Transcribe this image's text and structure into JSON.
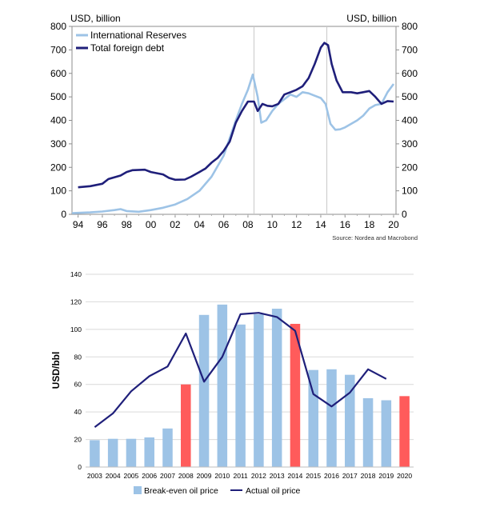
{
  "chart_data": [
    {
      "type": "line",
      "left_axis_title": "USD, billion",
      "right_axis_title": "USD, billion",
      "ylim": [
        0,
        800
      ],
      "y_ticks": [
        "0",
        "100",
        "200",
        "300",
        "400",
        "500",
        "600",
        "700",
        "800"
      ],
      "x_ticks": [
        "94",
        "96",
        "98",
        "00",
        "02",
        "04",
        "06",
        "08",
        "10",
        "12",
        "14",
        "16",
        "18",
        "20"
      ],
      "x_range": [
        1993.5,
        2020.2
      ],
      "vlines": [
        2008.5,
        2014.5
      ],
      "source": "Source: Nordea and Macrobond",
      "colors": {
        "reserves": "#9DC3E6",
        "debt": "#1F1F7A"
      },
      "series": [
        {
          "name": "International Reserves",
          "points": [
            [
              1993.5,
              5
            ],
            [
              1994,
              6
            ],
            [
              1995,
              8
            ],
            [
              1996,
              12
            ],
            [
              1997,
              18
            ],
            [
              1997.5,
              22
            ],
            [
              1998,
              14
            ],
            [
              1999,
              11
            ],
            [
              2000,
              18
            ],
            [
              2001,
              28
            ],
            [
              2002,
              42
            ],
            [
              2003,
              65
            ],
            [
              2004,
              100
            ],
            [
              2005,
              160
            ],
            [
              2006,
              250
            ],
            [
              2007,
              400
            ],
            [
              2007.5,
              470
            ],
            [
              2008,
              530
            ],
            [
              2008.4,
              595
            ],
            [
              2008.8,
              500
            ],
            [
              2009.1,
              390
            ],
            [
              2009.5,
              400
            ],
            [
              2010,
              440
            ],
            [
              2010.5,
              470
            ],
            [
              2011,
              490
            ],
            [
              2011.5,
              510
            ],
            [
              2012,
              500
            ],
            [
              2012.5,
              520
            ],
            [
              2013,
              515
            ],
            [
              2013.5,
              505
            ],
            [
              2014,
              495
            ],
            [
              2014.4,
              470
            ],
            [
              2014.8,
              385
            ],
            [
              2015.2,
              360
            ],
            [
              2015.6,
              362
            ],
            [
              2016,
              370
            ],
            [
              2016.5,
              385
            ],
            [
              2017,
              400
            ],
            [
              2017.5,
              420
            ],
            [
              2018,
              450
            ],
            [
              2018.5,
              465
            ],
            [
              2019,
              470
            ],
            [
              2019.5,
              520
            ],
            [
              2020,
              555
            ]
          ]
        },
        {
          "name": "Total foreign debt",
          "points": [
            [
              1994,
              115
            ],
            [
              1995,
              120
            ],
            [
              1996,
              130
            ],
            [
              1996.5,
              150
            ],
            [
              1997.5,
              165
            ],
            [
              1998,
              180
            ],
            [
              1998.5,
              188
            ],
            [
              1999.5,
              190
            ],
            [
              2000,
              180
            ],
            [
              2001,
              170
            ],
            [
              2001.5,
              155
            ],
            [
              2002,
              147
            ],
            [
              2002.8,
              148
            ],
            [
              2003.3,
              160
            ],
            [
              2004,
              180
            ],
            [
              2004.5,
              195
            ],
            [
              2005,
              220
            ],
            [
              2005.5,
              240
            ],
            [
              2006,
              270
            ],
            [
              2006.5,
              310
            ],
            [
              2007,
              390
            ],
            [
              2007.5,
              440
            ],
            [
              2008,
              480
            ],
            [
              2008.5,
              480
            ],
            [
              2008.8,
              440
            ],
            [
              2009.2,
              470
            ],
            [
              2009.6,
              462
            ],
            [
              2010,
              460
            ],
            [
              2010.5,
              470
            ],
            [
              2011,
              510
            ],
            [
              2011.5,
              520
            ],
            [
              2012,
              530
            ],
            [
              2012.5,
              545
            ],
            [
              2013,
              580
            ],
            [
              2013.5,
              640
            ],
            [
              2014,
              710
            ],
            [
              2014.3,
              730
            ],
            [
              2014.6,
              720
            ],
            [
              2014.9,
              640
            ],
            [
              2015.3,
              570
            ],
            [
              2015.8,
              520
            ],
            [
              2016.5,
              520
            ],
            [
              2017,
              515
            ],
            [
              2017.5,
              520
            ],
            [
              2018,
              525
            ],
            [
              2018.5,
              500
            ],
            [
              2019,
              470
            ],
            [
              2019.5,
              482
            ],
            [
              2020,
              480
            ]
          ]
        }
      ]
    },
    {
      "type": "bar",
      "ylabel": "USD/bbl",
      "ylim": [
        0,
        140
      ],
      "y_ticks": [
        "0",
        "20",
        "40",
        "60",
        "80",
        "100",
        "120",
        "140"
      ],
      "categories": [
        "2003",
        "2004",
        "2005",
        "2006",
        "2007",
        "2008",
        "2009",
        "2010",
        "2011",
        "2012",
        "2013",
        "2014",
        "2015",
        "2016",
        "2017",
        "2018",
        "2019",
        "2020"
      ],
      "bar_values": [
        19.5,
        20.5,
        20.5,
        21.5,
        28,
        60,
        110.5,
        118,
        103.5,
        111,
        115,
        104,
        70.5,
        71,
        67,
        50,
        48.5,
        51.5
      ],
      "highlight_years": [
        "2008",
        "2014",
        "2020"
      ],
      "line_values": [
        29,
        39,
        55,
        66,
        73,
        97,
        62,
        80,
        111,
        112,
        109,
        99,
        53,
        44,
        54,
        71,
        64
      ],
      "legend": {
        "bar": "Break-even oil price",
        "line": "Actual oil price"
      },
      "colors": {
        "bar": "#9DC3E6",
        "highlight": "#FF5B5B",
        "line": "#1F1F7A",
        "grid": "#D9D9D9"
      }
    }
  ]
}
